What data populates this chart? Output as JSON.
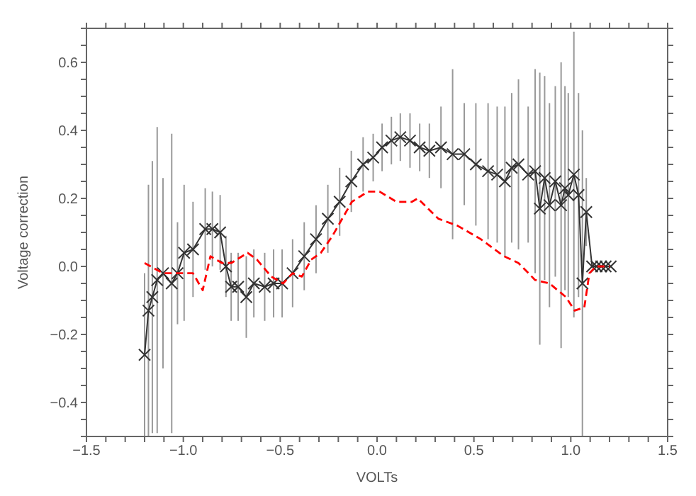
{
  "chart_data": {
    "type": "line",
    "xlabel": "VOLTs",
    "ylabel": "Voltage correction",
    "xlim": [
      -1.5,
      1.5
    ],
    "ylim": [
      -0.5,
      0.7
    ],
    "xticks": [
      {
        "value": -1.5,
        "label": "−1.5"
      },
      {
        "value": -1.4,
        "label": null
      },
      {
        "value": -1.3,
        "label": null
      },
      {
        "value": -1.2,
        "label": null
      },
      {
        "value": -1.1,
        "label": null
      },
      {
        "value": -1.0,
        "label": "−1.0"
      },
      {
        "value": -0.9,
        "label": null
      },
      {
        "value": -0.8,
        "label": null
      },
      {
        "value": -0.7,
        "label": null
      },
      {
        "value": -0.6,
        "label": null
      },
      {
        "value": -0.5,
        "label": "−0.5"
      },
      {
        "value": -0.4,
        "label": null
      },
      {
        "value": -0.3,
        "label": null
      },
      {
        "value": -0.2,
        "label": null
      },
      {
        "value": -0.1,
        "label": null
      },
      {
        "value": 0,
        "label": "0.0"
      },
      {
        "value": 0.1,
        "label": null
      },
      {
        "value": 0.2,
        "label": null
      },
      {
        "value": 0.3,
        "label": null
      },
      {
        "value": 0.4,
        "label": null
      },
      {
        "value": 0.5,
        "label": "0.5"
      },
      {
        "value": 0.6,
        "label": null
      },
      {
        "value": 0.7,
        "label": null
      },
      {
        "value": 0.8,
        "label": null
      },
      {
        "value": 0.9,
        "label": null
      },
      {
        "value": 1.0,
        "label": "1.0"
      },
      {
        "value": 1.1,
        "label": null
      },
      {
        "value": 1.2,
        "label": null
      },
      {
        "value": 1.3,
        "label": null
      },
      {
        "value": 1.4,
        "label": null
      },
      {
        "value": 1.5,
        "label": "1.5"
      }
    ],
    "yticks": [
      {
        "value": -0.5,
        "label": null
      },
      {
        "value": -0.45,
        "label": null
      },
      {
        "value": -0.4,
        "label": "−0.4"
      },
      {
        "value": -0.35,
        "label": null
      },
      {
        "value": -0.3,
        "label": null
      },
      {
        "value": -0.25,
        "label": null
      },
      {
        "value": -0.2,
        "label": "−0.2"
      },
      {
        "value": -0.15,
        "label": null
      },
      {
        "value": -0.1,
        "label": null
      },
      {
        "value": -0.05,
        "label": null
      },
      {
        "value": 0,
        "label": "0.0"
      },
      {
        "value": 0.05,
        "label": null
      },
      {
        "value": 0.1,
        "label": null
      },
      {
        "value": 0.15,
        "label": null
      },
      {
        "value": 0.2,
        "label": "0.2"
      },
      {
        "value": 0.25,
        "label": null
      },
      {
        "value": 0.3,
        "label": null
      },
      {
        "value": 0.35,
        "label": null
      },
      {
        "value": 0.4,
        "label": "0.4"
      },
      {
        "value": 0.45,
        "label": null
      },
      {
        "value": 0.5,
        "label": null
      },
      {
        "value": 0.55,
        "label": null
      },
      {
        "value": 0.6,
        "label": "0.6"
      },
      {
        "value": 0.65,
        "label": null
      },
      {
        "value": 0.7,
        "label": null
      }
    ],
    "series": [
      {
        "color": "#333333",
        "marker": "cross",
        "line_style": "solid",
        "x": [
          -1.2,
          -1.18,
          -1.16,
          -1.135,
          -1.105,
          -1.06,
          -1.03,
          -0.996,
          -0.95,
          -0.887,
          -0.85,
          -0.81,
          -0.78,
          -0.753,
          -0.717,
          -0.675,
          -0.636,
          -0.58,
          -0.534,
          -0.49,
          -0.436,
          -0.376,
          -0.315,
          -0.254,
          -0.193,
          -0.133,
          -0.072,
          -0.02,
          0.026,
          0.074,
          0.12,
          0.17,
          0.22,
          0.27,
          0.33,
          0.39,
          0.45,
          0.51,
          0.573,
          0.62,
          0.66,
          0.695,
          0.73,
          0.78,
          0.816,
          0.84,
          0.865,
          0.89,
          0.92,
          0.95,
          0.97,
          0.987,
          1.016,
          1.04,
          1.06,
          1.08,
          1.11,
          1.133,
          1.157,
          1.18,
          1.206
        ],
        "values": [
          -0.26,
          -0.13,
          -0.09,
          -0.04,
          -0.02,
          -0.05,
          -0.02,
          0.04,
          0.05,
          0.11,
          0.11,
          0.1,
          0.0,
          -0.06,
          -0.06,
          -0.09,
          -0.05,
          -0.06,
          -0.05,
          -0.05,
          -0.02,
          0.03,
          0.08,
          0.14,
          0.19,
          0.25,
          0.3,
          0.32,
          0.35,
          0.37,
          0.38,
          0.37,
          0.35,
          0.34,
          0.35,
          0.33,
          0.33,
          0.3,
          0.28,
          0.27,
          0.25,
          0.29,
          0.3,
          0.27,
          0.28,
          0.17,
          0.26,
          0.18,
          0.25,
          0.18,
          0.23,
          0.21,
          0.27,
          0.21,
          -0.05,
          0.16,
          0.0,
          0.0,
          0.0,
          0.0,
          0.0
        ],
        "errors": [
          0.24,
          0.37,
          0.4,
          0.45,
          0.28,
          0.44,
          0.15,
          0.2,
          0.14,
          0.12,
          0.11,
          0.11,
          0.09,
          0.1,
          0.1,
          0.12,
          0.1,
          0.1,
          0.1,
          0.1,
          0.1,
          0.1,
          0.1,
          0.1,
          0.1,
          0.09,
          0.08,
          0.07,
          0.07,
          0.07,
          0.07,
          0.08,
          0.07,
          0.08,
          0.12,
          0.25,
          0.15,
          0.18,
          0.2,
          0.2,
          0.22,
          0.22,
          0.25,
          0.2,
          0.3,
          0.4,
          0.3,
          0.3,
          0.28,
          0.42,
          0.3,
          0.3,
          0.42,
          0.3,
          0.45,
          0.1,
          null,
          null,
          null,
          null,
          null
        ]
      },
      {
        "color": "#ff0000",
        "marker": "none",
        "line_style": "dashed",
        "x": [
          -1.2,
          -1.105,
          -0.95,
          -0.9,
          -0.86,
          -0.8,
          -0.753,
          -0.668,
          -0.62,
          -0.546,
          -0.485,
          -0.436,
          -0.388,
          -0.34,
          -0.29,
          -0.23,
          -0.18,
          -0.13,
          -0.047,
          0.013,
          0.1,
          0.18,
          0.21,
          0.317,
          0.414,
          0.536,
          0.655,
          0.73,
          0.816,
          0.89,
          0.975,
          1.02,
          1.07,
          1.096,
          1.13,
          1.2
        ],
        "values": [
          0.01,
          -0.02,
          -0.02,
          -0.07,
          0.03,
          0.01,
          0.01,
          0.04,
          0.02,
          -0.03,
          -0.05,
          -0.02,
          -0.03,
          0.02,
          0.04,
          0.09,
          0.14,
          0.19,
          0.22,
          0.22,
          0.19,
          0.19,
          0.2,
          0.14,
          0.12,
          0.08,
          0.03,
          0.01,
          -0.04,
          -0.05,
          -0.09,
          -0.13,
          -0.12,
          -0.02,
          0.0,
          0.0
        ]
      }
    ]
  }
}
